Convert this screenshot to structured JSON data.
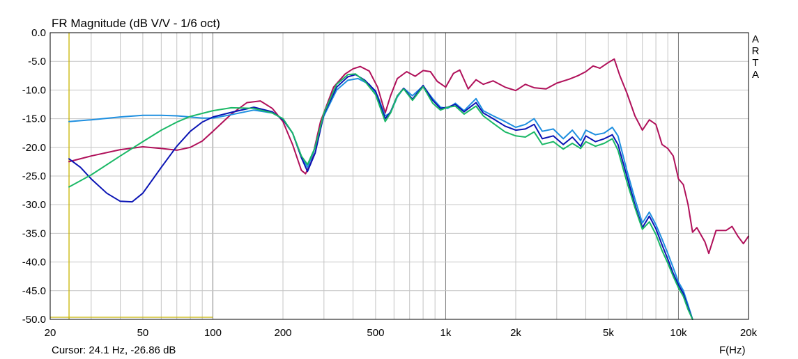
{
  "chart_data": {
    "type": "line",
    "title": "FR Magnitude (dB V/V - 1/6 oct)",
    "brand": "ARTA",
    "xlabel": "F(Hz)",
    "ylabel": "",
    "x_scale": "log",
    "xlim": [
      20,
      20000
    ],
    "ylim": [
      -50,
      0
    ],
    "grid": true,
    "x_tick_labels": [
      {
        "value": 20,
        "label": "20"
      },
      {
        "value": 50,
        "label": "50"
      },
      {
        "value": 100,
        "label": "100"
      },
      {
        "value": 200,
        "label": "200"
      },
      {
        "value": 500,
        "label": "500"
      },
      {
        "value": 1000,
        "label": "1k"
      },
      {
        "value": 2000,
        "label": "2k"
      },
      {
        "value": 5000,
        "label": "5k"
      },
      {
        "value": 10000,
        "label": "10k"
      },
      {
        "value": 20000,
        "label": "20k"
      }
    ],
    "y_tick_labels": [
      {
        "value": 0,
        "label": "0.0"
      },
      {
        "value": -5,
        "label": "-5.0"
      },
      {
        "value": -10,
        "label": "-10.0"
      },
      {
        "value": -15,
        "label": "-15.0"
      },
      {
        "value": -20,
        "label": "-20.0"
      },
      {
        "value": -25,
        "label": "-25.0"
      },
      {
        "value": -30,
        "label": "-30.0"
      },
      {
        "value": -35,
        "label": "-35.0"
      },
      {
        "value": -40,
        "label": "-40.0"
      },
      {
        "value": -45,
        "label": "-45.0"
      },
      {
        "value": -50,
        "label": "-50.0"
      }
    ],
    "cursor": {
      "freq": 24.1,
      "db": -26.86,
      "color": "#c8b400"
    },
    "series": [
      {
        "color": "#b0105a",
        "points": [
          [
            24.1,
            -22.5
          ],
          [
            30,
            -21.5
          ],
          [
            40,
            -20.4
          ],
          [
            50,
            -19.9
          ],
          [
            60,
            -20.2
          ],
          [
            70,
            -20.5
          ],
          [
            80,
            -20.0
          ],
          [
            90,
            -18.9
          ],
          [
            100,
            -17.2
          ],
          [
            120,
            -14.2
          ],
          [
            140,
            -12.2
          ],
          [
            160,
            -11.9
          ],
          [
            180,
            -13.2
          ],
          [
            200,
            -15.5
          ],
          [
            220,
            -19.5
          ],
          [
            240,
            -24.0
          ],
          [
            250,
            -24.6
          ],
          [
            265,
            -22.5
          ],
          [
            290,
            -15.5
          ],
          [
            330,
            -9.5
          ],
          [
            370,
            -7.2
          ],
          [
            400,
            -6.3
          ],
          [
            430,
            -5.9
          ],
          [
            470,
            -6.7
          ],
          [
            510,
            -9.5
          ],
          [
            550,
            -14.0
          ],
          [
            580,
            -11.0
          ],
          [
            620,
            -8.0
          ],
          [
            680,
            -6.8
          ],
          [
            740,
            -7.6
          ],
          [
            800,
            -6.6
          ],
          [
            860,
            -6.8
          ],
          [
            920,
            -8.5
          ],
          [
            1000,
            -9.5
          ],
          [
            1080,
            -7.1
          ],
          [
            1150,
            -6.5
          ],
          [
            1250,
            -9.8
          ],
          [
            1350,
            -8.2
          ],
          [
            1450,
            -9.0
          ],
          [
            1600,
            -8.4
          ],
          [
            1800,
            -9.5
          ],
          [
            2000,
            -10.1
          ],
          [
            2200,
            -9.0
          ],
          [
            2400,
            -9.6
          ],
          [
            2700,
            -9.8
          ],
          [
            3000,
            -8.8
          ],
          [
            3400,
            -8.1
          ],
          [
            3700,
            -7.5
          ],
          [
            4000,
            -6.8
          ],
          [
            4300,
            -5.8
          ],
          [
            4600,
            -6.2
          ],
          [
            5000,
            -5.2
          ],
          [
            5300,
            -4.6
          ],
          [
            5600,
            -7.5
          ],
          [
            6000,
            -10.5
          ],
          [
            6500,
            -14.5
          ],
          [
            7000,
            -17.0
          ],
          [
            7500,
            -15.2
          ],
          [
            8000,
            -16.0
          ],
          [
            8500,
            -19.5
          ],
          [
            9000,
            -20.2
          ],
          [
            9500,
            -21.5
          ],
          [
            10000,
            -25.5
          ],
          [
            10500,
            -26.5
          ],
          [
            11000,
            -30.0
          ],
          [
            11500,
            -34.8
          ],
          [
            12000,
            -34.0
          ],
          [
            13000,
            -36.5
          ],
          [
            13500,
            -38.5
          ],
          [
            14500,
            -34.5
          ],
          [
            16000,
            -34.5
          ],
          [
            17000,
            -33.8
          ],
          [
            18000,
            -35.5
          ],
          [
            19000,
            -36.8
          ],
          [
            20000,
            -35.5
          ]
        ]
      },
      {
        "color": "#1e8fe0",
        "points": [
          [
            24.1,
            -15.5
          ],
          [
            30,
            -15.2
          ],
          [
            40,
            -14.7
          ],
          [
            50,
            -14.4
          ],
          [
            60,
            -14.4
          ],
          [
            70,
            -14.5
          ],
          [
            80,
            -14.7
          ],
          [
            90,
            -14.9
          ],
          [
            100,
            -14.9
          ],
          [
            120,
            -14.3
          ],
          [
            150,
            -13.5
          ],
          [
            180,
            -14.0
          ],
          [
            200,
            -15.0
          ],
          [
            220,
            -17.5
          ],
          [
            240,
            -21.5
          ],
          [
            255,
            -23.5
          ],
          [
            270,
            -21.0
          ],
          [
            300,
            -14.5
          ],
          [
            340,
            -10.0
          ],
          [
            380,
            -8.3
          ],
          [
            420,
            -8.0
          ],
          [
            470,
            -9.0
          ],
          [
            510,
            -11.0
          ],
          [
            550,
            -14.5
          ],
          [
            580,
            -14.0
          ],
          [
            620,
            -11.2
          ],
          [
            660,
            -9.7
          ],
          [
            720,
            -11.0
          ],
          [
            800,
            -9.3
          ],
          [
            880,
            -11.5
          ],
          [
            950,
            -13.0
          ],
          [
            1020,
            -13.2
          ],
          [
            1100,
            -12.3
          ],
          [
            1200,
            -13.6
          ],
          [
            1350,
            -11.5
          ],
          [
            1450,
            -13.6
          ],
          [
            1600,
            -14.5
          ],
          [
            1800,
            -15.5
          ],
          [
            2000,
            -16.5
          ],
          [
            2200,
            -16.0
          ],
          [
            2400,
            -15.0
          ],
          [
            2600,
            -17.2
          ],
          [
            2900,
            -16.8
          ],
          [
            3200,
            -18.5
          ],
          [
            3500,
            -17.0
          ],
          [
            3800,
            -18.8
          ],
          [
            4000,
            -17.0
          ],
          [
            4400,
            -17.8
          ],
          [
            4800,
            -17.5
          ],
          [
            5200,
            -16.5
          ],
          [
            5500,
            -18.0
          ],
          [
            6000,
            -24.0
          ],
          [
            6500,
            -29.0
          ],
          [
            7000,
            -33.2
          ],
          [
            7500,
            -31.3
          ],
          [
            8000,
            -33.5
          ],
          [
            8500,
            -36.0
          ],
          [
            9000,
            -38.5
          ],
          [
            9500,
            -41.0
          ],
          [
            10000,
            -43.5
          ],
          [
            10500,
            -45.0
          ],
          [
            11000,
            -47.5
          ],
          [
            11500,
            -50.0
          ]
        ]
      },
      {
        "color": "#0a14b4",
        "points": [
          [
            24.1,
            -22.0
          ],
          [
            27,
            -23.5
          ],
          [
            30,
            -25.5
          ],
          [
            35,
            -28.0
          ],
          [
            40,
            -29.4
          ],
          [
            45,
            -29.5
          ],
          [
            50,
            -28.0
          ],
          [
            60,
            -23.5
          ],
          [
            70,
            -19.8
          ],
          [
            80,
            -17.2
          ],
          [
            90,
            -15.6
          ],
          [
            100,
            -14.7
          ],
          [
            120,
            -13.9
          ],
          [
            150,
            -13.0
          ],
          [
            180,
            -13.8
          ],
          [
            200,
            -15.2
          ],
          [
            220,
            -17.5
          ],
          [
            240,
            -21.8
          ],
          [
            255,
            -24.2
          ],
          [
            275,
            -21.0
          ],
          [
            300,
            -14.2
          ],
          [
            340,
            -9.5
          ],
          [
            380,
            -7.7
          ],
          [
            410,
            -7.3
          ],
          [
            450,
            -8.3
          ],
          [
            500,
            -10.2
          ],
          [
            550,
            -15.0
          ],
          [
            580,
            -13.8
          ],
          [
            620,
            -11.0
          ],
          [
            660,
            -9.7
          ],
          [
            720,
            -11.6
          ],
          [
            800,
            -9.2
          ],
          [
            880,
            -11.8
          ],
          [
            950,
            -13.2
          ],
          [
            1020,
            -13.0
          ],
          [
            1100,
            -12.5
          ],
          [
            1200,
            -13.8
          ],
          [
            1350,
            -12.2
          ],
          [
            1450,
            -14.0
          ],
          [
            1600,
            -15.0
          ],
          [
            1800,
            -16.3
          ],
          [
            2000,
            -17.0
          ],
          [
            2200,
            -16.8
          ],
          [
            2400,
            -16.0
          ],
          [
            2600,
            -18.5
          ],
          [
            2900,
            -18.0
          ],
          [
            3200,
            -19.5
          ],
          [
            3500,
            -18.2
          ],
          [
            3800,
            -19.8
          ],
          [
            4000,
            -18.0
          ],
          [
            4400,
            -19.0
          ],
          [
            4800,
            -18.5
          ],
          [
            5200,
            -17.8
          ],
          [
            5500,
            -19.5
          ],
          [
            6000,
            -25.0
          ],
          [
            6500,
            -30.0
          ],
          [
            7000,
            -34.0
          ],
          [
            7500,
            -32.0
          ],
          [
            8000,
            -34.2
          ],
          [
            8500,
            -37.0
          ],
          [
            9000,
            -39.5
          ],
          [
            9500,
            -42.0
          ],
          [
            10000,
            -44.0
          ],
          [
            10500,
            -45.5
          ],
          [
            11000,
            -48.0
          ],
          [
            11500,
            -50.0
          ]
        ]
      },
      {
        "color": "#1ab866",
        "points": [
          [
            24.1,
            -26.9
          ],
          [
            30,
            -24.8
          ],
          [
            40,
            -21.5
          ],
          [
            50,
            -19.0
          ],
          [
            60,
            -17.0
          ],
          [
            70,
            -15.6
          ],
          [
            80,
            -14.6
          ],
          [
            100,
            -13.6
          ],
          [
            120,
            -13.1
          ],
          [
            150,
            -13.2
          ],
          [
            180,
            -14.0
          ],
          [
            200,
            -15.0
          ],
          [
            220,
            -17.5
          ],
          [
            240,
            -21.5
          ],
          [
            255,
            -23.0
          ],
          [
            275,
            -20.0
          ],
          [
            300,
            -14.0
          ],
          [
            340,
            -9.0
          ],
          [
            380,
            -7.3
          ],
          [
            410,
            -7.2
          ],
          [
            450,
            -8.5
          ],
          [
            500,
            -10.8
          ],
          [
            550,
            -15.5
          ],
          [
            580,
            -14.0
          ],
          [
            620,
            -11.0
          ],
          [
            660,
            -9.8
          ],
          [
            720,
            -11.8
          ],
          [
            800,
            -9.4
          ],
          [
            880,
            -12.3
          ],
          [
            950,
            -13.5
          ],
          [
            1020,
            -13.0
          ],
          [
            1100,
            -12.8
          ],
          [
            1200,
            -14.2
          ],
          [
            1350,
            -12.8
          ],
          [
            1450,
            -14.5
          ],
          [
            1600,
            -15.8
          ],
          [
            1800,
            -17.3
          ],
          [
            2000,
            -18.0
          ],
          [
            2200,
            -18.2
          ],
          [
            2400,
            -17.3
          ],
          [
            2600,
            -19.5
          ],
          [
            2900,
            -19.0
          ],
          [
            3200,
            -20.3
          ],
          [
            3500,
            -19.3
          ],
          [
            3800,
            -20.2
          ],
          [
            4000,
            -19.0
          ],
          [
            4400,
            -19.8
          ],
          [
            4800,
            -19.3
          ],
          [
            5200,
            -18.5
          ],
          [
            5500,
            -20.5
          ],
          [
            6000,
            -26.0
          ],
          [
            6500,
            -30.5
          ],
          [
            7000,
            -34.3
          ],
          [
            7500,
            -33.0
          ],
          [
            8000,
            -35.2
          ],
          [
            8500,
            -38.0
          ],
          [
            9000,
            -40.2
          ],
          [
            9500,
            -42.5
          ],
          [
            10000,
            -44.5
          ],
          [
            10500,
            -46.0
          ],
          [
            11000,
            -48.3
          ],
          [
            11500,
            -50.0
          ]
        ]
      }
    ]
  },
  "footer": {
    "cursor_text": "Cursor: 24.1 Hz, -26.86 dB",
    "x_axis_label": "F(Hz)"
  }
}
